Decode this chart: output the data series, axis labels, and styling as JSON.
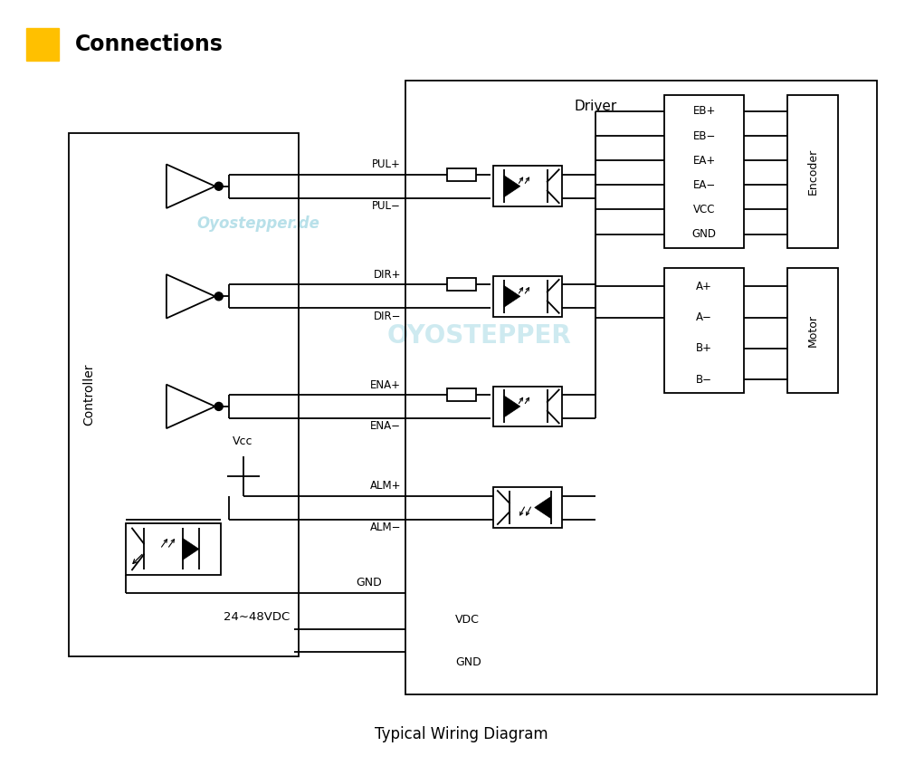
{
  "title": "Connections",
  "subtitle": "Typical Wiring Diagram",
  "title_rect_color": "#FFC000",
  "watermark1": "Oyostepper.de",
  "watermark2": "OYOSTEPPER",
  "watermark_color": "#7EC8D8",
  "bg_color": "#FFFFFF",
  "lc": "#000000",
  "pul_labels": [
    "PUL+",
    "PUL−"
  ],
  "dir_labels": [
    "DIR+",
    "DIR−"
  ],
  "ena_labels": [
    "ENA+",
    "ENA−"
  ],
  "alm_labels": [
    "ALM+",
    "ALM−"
  ],
  "enc_labels": [
    "EB+",
    "EB−",
    "EA+",
    "EA−",
    "VCC",
    "GND"
  ],
  "mot_labels": [
    "A+",
    "A−",
    "B+",
    "B−"
  ],
  "driver_label": "Driver",
  "controller_label": "Controller",
  "encoder_label": "Encoder",
  "motor_label": "Motor",
  "vcc_label": "Vcc",
  "gnd_label": "GND",
  "pwr_label": "24∼48VDC",
  "vdc_label": "VDC",
  "gnd2_label": "GND"
}
